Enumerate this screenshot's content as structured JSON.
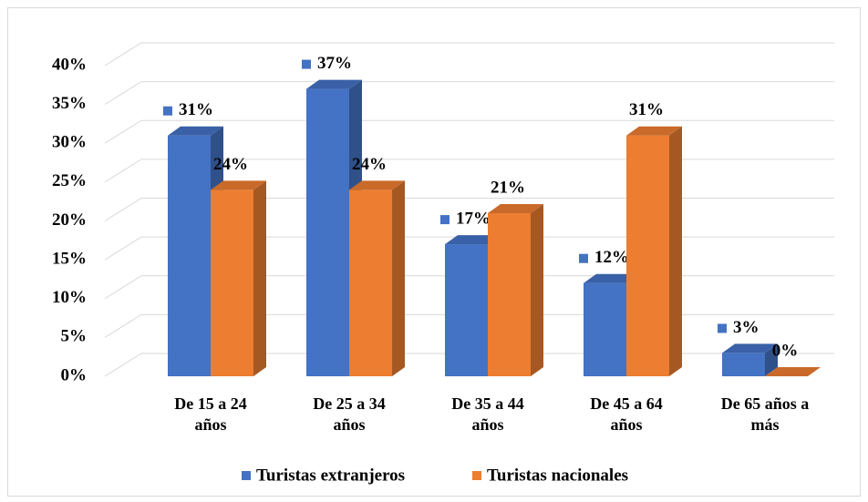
{
  "chart_data": {
    "type": "bar3d",
    "categories": [
      "De 15 a 24 años",
      "De 25 a 34 años",
      "De 35 a 44 años",
      "De 45 a 64 años",
      "De 65 años a más"
    ],
    "series": [
      {
        "name": "Turistas extranjeros",
        "color": "#4472c4",
        "values": [
          31,
          37,
          17,
          12,
          3
        ],
        "value_labels": [
          "31%",
          "37%",
          "17%",
          "12%",
          "3%"
        ]
      },
      {
        "name": "Turistas nacionales",
        "color": "#ed7d31",
        "values": [
          24,
          24,
          21,
          31,
          0
        ],
        "value_labels": [
          "24%",
          "24%",
          "21%",
          "31%",
          "0%"
        ]
      }
    ],
    "ylim": [
      0,
      40
    ],
    "yticks": [
      {
        "value": 0,
        "label": "0%"
      },
      {
        "value": 5,
        "label": "5%"
      },
      {
        "value": 10,
        "label": "10%"
      },
      {
        "value": 15,
        "label": "15%"
      },
      {
        "value": 20,
        "label": "20%"
      },
      {
        "value": 25,
        "label": "25%"
      },
      {
        "value": 30,
        "label": "30%"
      },
      {
        "value": 35,
        "label": "35%"
      },
      {
        "value": 40,
        "label": "40%"
      }
    ],
    "grid": true,
    "legend": "bottom"
  }
}
